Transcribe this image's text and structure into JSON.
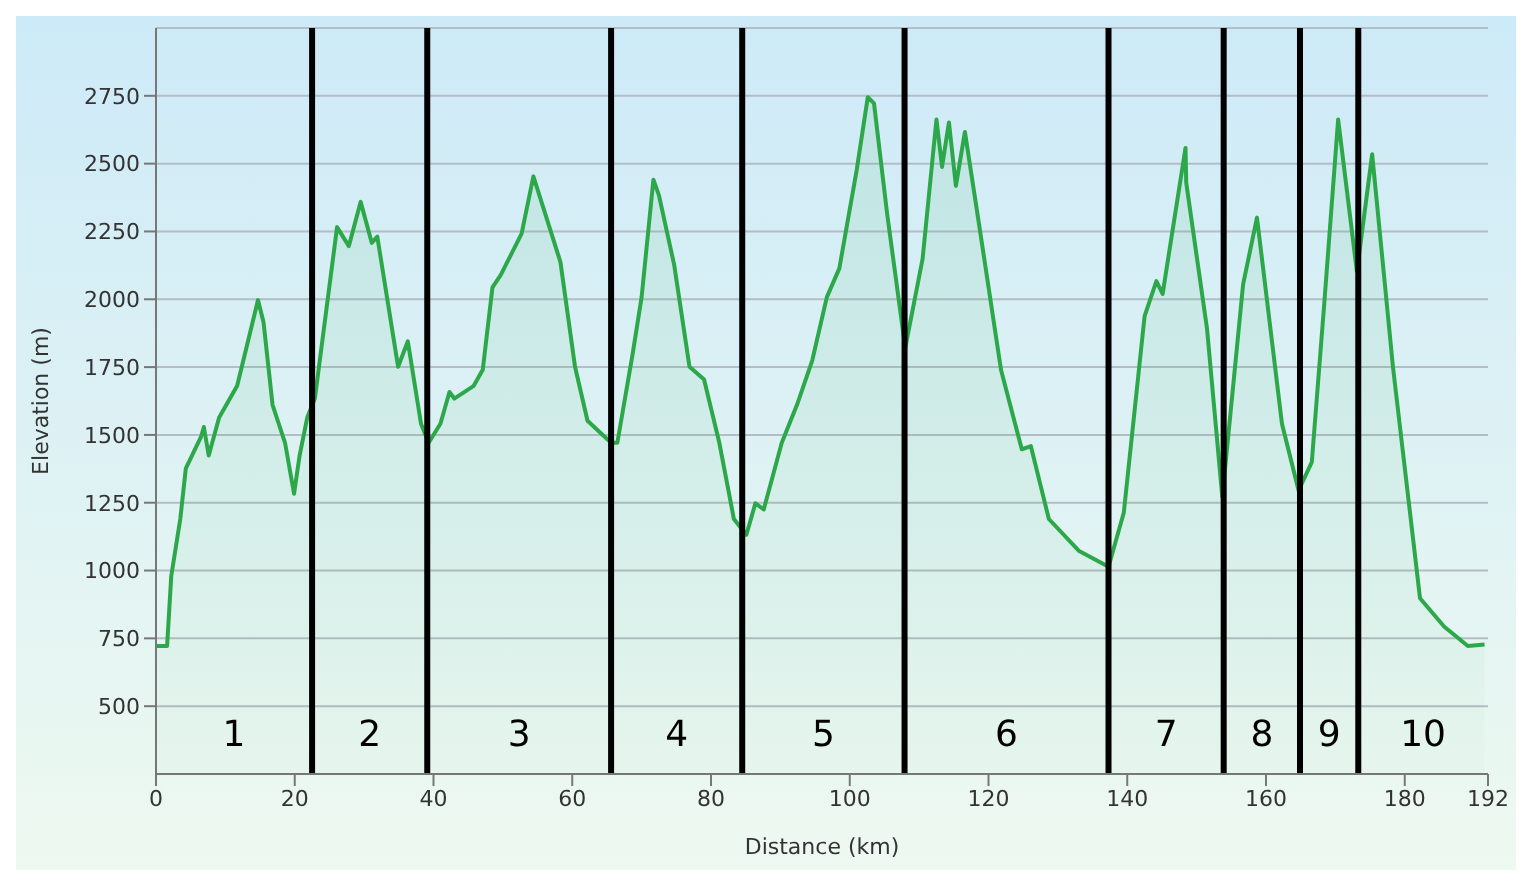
{
  "chart_data": {
    "type": "area",
    "xlabel": "Distance (km)",
    "ylabel": "Elevation (m)",
    "xlim": [
      0,
      192
    ],
    "xticks": [
      0,
      20,
      40,
      60,
      80,
      100,
      120,
      140,
      160,
      180,
      192
    ],
    "ylim": [
      250,
      3000
    ],
    "yticks": [
      500,
      750,
      1000,
      1250,
      1500,
      1750,
      2000,
      2250,
      2500,
      2750
    ],
    "grid": "y",
    "series": [
      {
        "color": "#2ca84a",
        "x": [
          0,
          1.6,
          2.2,
          3.5,
          4.3,
          6.5,
          6.9,
          7.6,
          9.1,
          11.7,
          14.7,
          15.5,
          16.8,
          18.6,
          19.9,
          20.7,
          21.8,
          22.9,
          24.2,
          26.1,
          27.8,
          29.5,
          31.1,
          31.9,
          34.9,
          36.3,
          38.2,
          39.3,
          41.0,
          42.3,
          43.0,
          45.8,
          47.1,
          48.5,
          49.7,
          52.7,
          54.4,
          55.7,
          58.3,
          60.4,
          62.2,
          65.6,
          66.5,
          68.7,
          70.0,
          71.7,
          72.5,
          74.7,
          76.9,
          79.0,
          81.2,
          83.3,
          85.1,
          86.4,
          87.6,
          90.2,
          92.4,
          94.6,
          96.7,
          98.5,
          101.0,
          102.6,
          103.5,
          105.4,
          108.0,
          110.5,
          112.5,
          113.3,
          114.3,
          115.3,
          116.6,
          118.7,
          121.8,
          124.8,
          126.1,
          128.7,
          133.0,
          137.3,
          139.5,
          142.5,
          144.2,
          145.1,
          148.4,
          148.5,
          151.5,
          153.7,
          156.7,
          158.7,
          162.3,
          164.7,
          166.6,
          168.4,
          170.4,
          173.1,
          175.3,
          178.3,
          182.2,
          185.7,
          189.1,
          191.5
        ],
        "values": [
          722,
          722,
          980,
          1190,
          1377,
          1494,
          1529,
          1424,
          1564,
          1681,
          1997,
          1915,
          1611,
          1471,
          1283,
          1424,
          1564,
          1634,
          1891,
          2266,
          2196,
          2359,
          2208,
          2231,
          1751,
          1845,
          1541,
          1471,
          1541,
          1658,
          1634,
          1681,
          1740,
          2044,
          2090,
          2242,
          2453,
          2348,
          2137,
          1751,
          1552,
          1471,
          1471,
          1798,
          2008,
          2441,
          2383,
          2126,
          1751,
          1704,
          1471,
          1190,
          1132,
          1248,
          1225,
          1471,
          1611,
          1775,
          2008,
          2114,
          2476,
          2745,
          2722,
          2313,
          1821,
          2149,
          2663,
          2488,
          2652,
          2418,
          2617,
          2266,
          1740,
          1447,
          1459,
          1190,
          1073,
          1014,
          1213,
          1938,
          2067,
          2020,
          2558,
          2430,
          1891,
          1272,
          2055,
          2301,
          1541,
          1295,
          1400,
          1985,
          2663,
          2102,
          2535,
          1751,
          898,
          793,
          722,
          727
        ]
      }
    ],
    "ref_lines": [
      {
        "axis": "x",
        "value": 22.5,
        "color": "#000000"
      },
      {
        "axis": "x",
        "value": 39.1,
        "color": "#000000"
      },
      {
        "axis": "x",
        "value": 65.6,
        "color": "#000000"
      },
      {
        "axis": "x",
        "value": 84.5,
        "color": "#000000"
      },
      {
        "axis": "x",
        "value": 107.9,
        "color": "#000000"
      },
      {
        "axis": "x",
        "value": 137.3,
        "color": "#000000"
      },
      {
        "axis": "x",
        "value": 153.9,
        "color": "#000000"
      },
      {
        "axis": "x",
        "value": 164.9,
        "color": "#000000"
      },
      {
        "axis": "x",
        "value": 173.3,
        "color": "#000000"
      }
    ],
    "annotations": [
      "1",
      "2",
      "3",
      "4",
      "5",
      "6",
      "7",
      "8",
      "9",
      "10"
    ]
  }
}
